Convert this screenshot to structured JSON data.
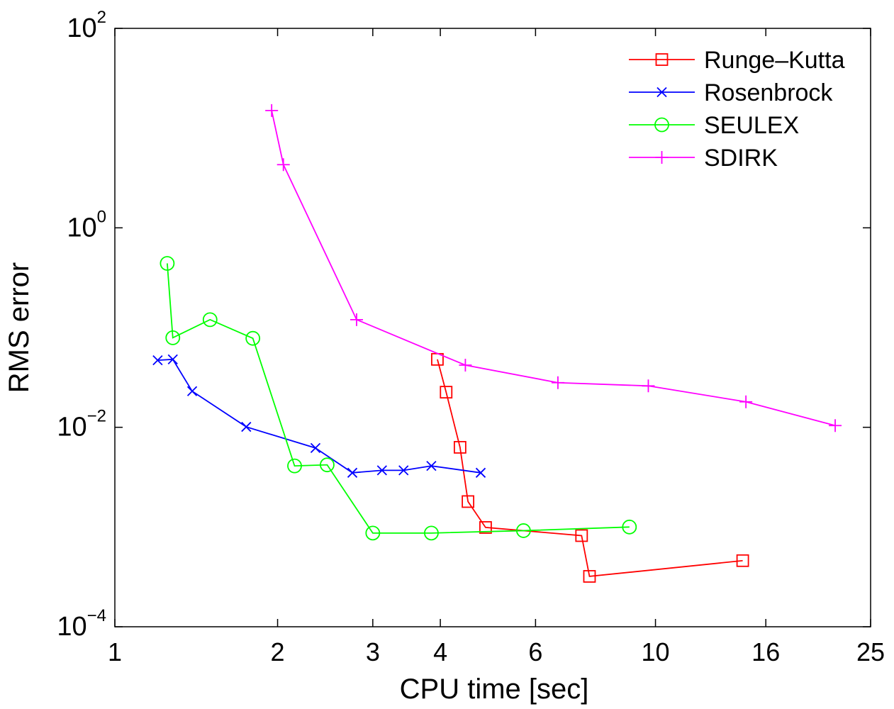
{
  "chart_data": {
    "type": "line",
    "title": "",
    "xlabel": "CPU time [sec]",
    "ylabel": "RMS error",
    "xscale": "log",
    "yscale": "log",
    "xlim": [
      1,
      25
    ],
    "ylim": [
      0.0001,
      100
    ],
    "grid": false,
    "legend_position": "top-right",
    "x_ticks": [
      1,
      2,
      3,
      4,
      6,
      10,
      16,
      25
    ],
    "x_tick_labels": [
      "1",
      "2",
      "3",
      "4",
      "6",
      "10",
      "16",
      "25"
    ],
    "y_ticks": [
      0.0001,
      0.01,
      1,
      100
    ],
    "y_tick_labels": [
      {
        "base": "10",
        "exp": "−4"
      },
      {
        "base": "10",
        "exp": "−2"
      },
      {
        "base": "10",
        "exp": "0"
      },
      {
        "base": "10",
        "exp": "2"
      }
    ],
    "series": [
      {
        "name": "Runge–Kutta",
        "color": "#ff0000",
        "marker": "square",
        "x": [
          3.95,
          4.1,
          4.35,
          4.5,
          4.85,
          7.3,
          7.55,
          14.5
        ],
        "y": [
          0.048,
          0.0225,
          0.0063,
          0.0018,
          0.00099,
          0.00082,
          0.00032,
          0.00046
        ]
      },
      {
        "name": "Rosenbrock",
        "color": "#0000ff",
        "marker": "x",
        "x": [
          1.2,
          1.28,
          1.39,
          1.75,
          2.35,
          2.75,
          3.12,
          3.42,
          3.85,
          4.75
        ],
        "y": [
          0.047,
          0.048,
          0.023,
          0.0101,
          0.0062,
          0.0035,
          0.0037,
          0.0037,
          0.0041,
          0.0035
        ]
      },
      {
        "name": "SEULEX",
        "color": "#00ff00",
        "marker": "circle",
        "x": [
          1.25,
          1.28,
          1.5,
          1.8,
          2.15,
          2.47,
          3.0,
          3.85,
          5.7,
          8.95
        ],
        "y": [
          0.44,
          0.079,
          0.12,
          0.078,
          0.0041,
          0.0042,
          0.00087,
          0.00087,
          0.00092,
          0.001
        ]
      },
      {
        "name": "SDIRK",
        "color": "#ff00ff",
        "marker": "plus",
        "x": [
          1.95,
          2.05,
          2.8,
          4.45,
          6.6,
          9.7,
          14.7,
          21.5
        ],
        "y": [
          15.0,
          4.3,
          0.12,
          0.042,
          0.028,
          0.026,
          0.018,
          0.0104
        ]
      }
    ]
  }
}
